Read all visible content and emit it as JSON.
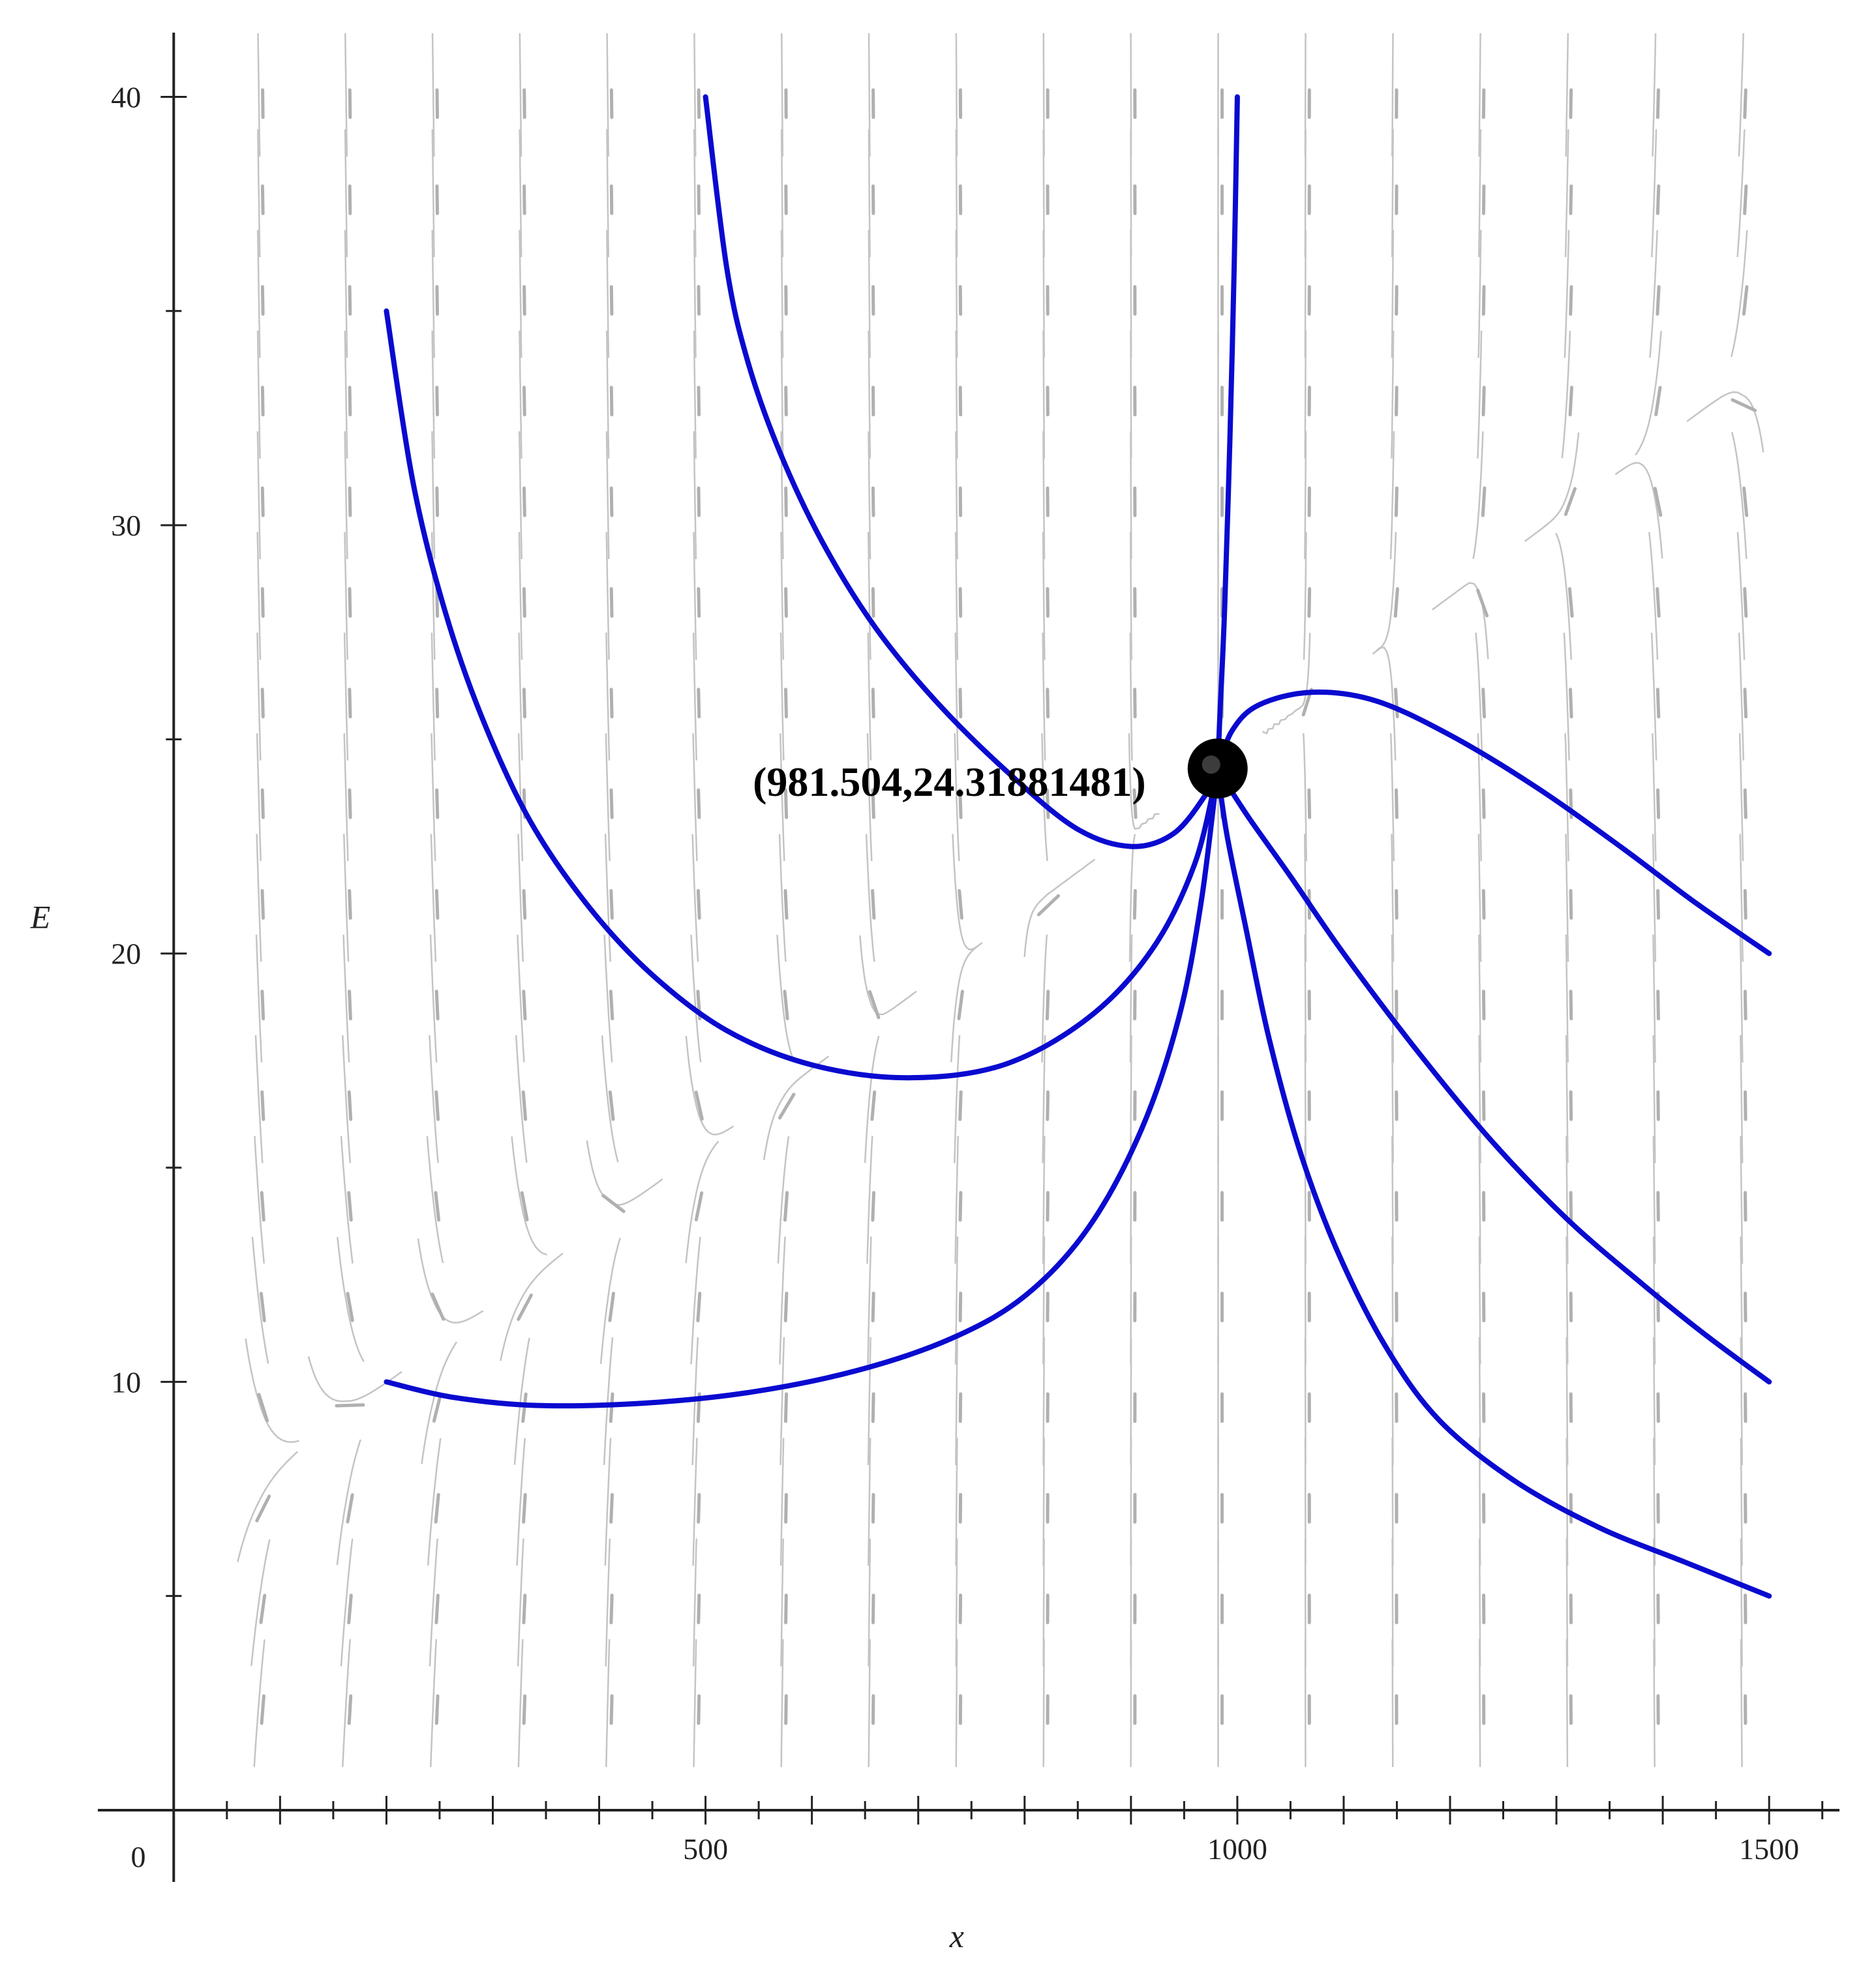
{
  "chart_data": {
    "type": "phase_portrait",
    "xlabel": "x",
    "ylabel": "E",
    "xlim": [
      -10,
      1560
    ],
    "ylim": [
      0,
      41.5
    ],
    "x_ticks": [
      500,
      1000,
      1500
    ],
    "y_ticks": [
      10,
      20,
      30,
      40
    ],
    "origin_label": "0",
    "equilibrium": {
      "x": 981.504,
      "y": 24.31881481,
      "label": "(981.504,24.31881481)"
    },
    "colors": {
      "trajectory": "#0a0ad0",
      "field": "#c4c4c4",
      "equilibrium": "#000000"
    },
    "trajectories": [
      {
        "name": "start (500, 40)",
        "points": [
          [
            500,
            40
          ],
          [
            520,
            36
          ],
          [
            540,
            33.8
          ],
          [
            570,
            31.7
          ],
          [
            610,
            29.6
          ],
          [
            660,
            27.6
          ],
          [
            720,
            25.8
          ],
          [
            790,
            24.1
          ],
          [
            850,
            22.9
          ],
          [
            900,
            22.5
          ],
          [
            940,
            22.8
          ],
          [
            970,
            23.7
          ],
          [
            981.5,
            24.3
          ]
        ]
      },
      {
        "name": "start (200, 35)",
        "points": [
          [
            200,
            35
          ],
          [
            225,
            31
          ],
          [
            255,
            28
          ],
          [
            290,
            25.5
          ],
          [
            335,
            23.1
          ],
          [
            390,
            21.1
          ],
          [
            450,
            19.5
          ],
          [
            520,
            18.2
          ],
          [
            600,
            17.4
          ],
          [
            690,
            17.1
          ],
          [
            780,
            17.4
          ],
          [
            860,
            18.5
          ],
          [
            920,
            20.1
          ],
          [
            960,
            22.1
          ],
          [
            981.5,
            24.3
          ]
        ]
      },
      {
        "name": "start (1000, 40)",
        "points": [
          [
            1000,
            40
          ],
          [
            997,
            36
          ],
          [
            993,
            32
          ],
          [
            988,
            28
          ],
          [
            983.5,
            25.5
          ],
          [
            981.5,
            24.3
          ]
        ]
      },
      {
        "name": "start (200, 10)",
        "points": [
          [
            200,
            10
          ],
          [
            260,
            9.65
          ],
          [
            340,
            9.45
          ],
          [
            440,
            9.5
          ],
          [
            540,
            9.75
          ],
          [
            640,
            10.25
          ],
          [
            730,
            11
          ],
          [
            800,
            12
          ],
          [
            860,
            13.6
          ],
          [
            910,
            15.9
          ],
          [
            945,
            18.5
          ],
          [
            966,
            21.2
          ],
          [
            981.5,
            24.3
          ]
        ]
      },
      {
        "name": "start (1500, 20)",
        "points": [
          [
            1500,
            20
          ],
          [
            1430,
            21.2
          ],
          [
            1360,
            22.5
          ],
          [
            1280,
            23.9
          ],
          [
            1200,
            25.1
          ],
          [
            1130,
            25.9
          ],
          [
            1070,
            26.1
          ],
          [
            1020,
            25.8
          ],
          [
            995,
            25.2
          ],
          [
            981.5,
            24.3
          ]
        ]
      },
      {
        "name": "start (1500, 10)",
        "points": [
          [
            1500,
            10
          ],
          [
            1440,
            11.1
          ],
          [
            1380,
            12.3
          ],
          [
            1310,
            13.8
          ],
          [
            1240,
            15.6
          ],
          [
            1170,
            17.7
          ],
          [
            1100,
            20
          ],
          [
            1050,
            21.8
          ],
          [
            1010,
            23.2
          ],
          [
            981.5,
            24.3
          ]
        ]
      },
      {
        "name": "start (1500, 5)",
        "points": [
          [
            1500,
            5
          ],
          [
            1420,
            5.8
          ],
          [
            1340,
            6.6
          ],
          [
            1260,
            7.7
          ],
          [
            1190,
            9.1
          ],
          [
            1140,
            10.8
          ],
          [
            1095,
            13
          ],
          [
            1060,
            15.3
          ],
          [
            1030,
            18
          ],
          [
            1008,
            20.6
          ],
          [
            990,
            22.8
          ],
          [
            981.5,
            24.3
          ]
        ]
      }
    ]
  }
}
